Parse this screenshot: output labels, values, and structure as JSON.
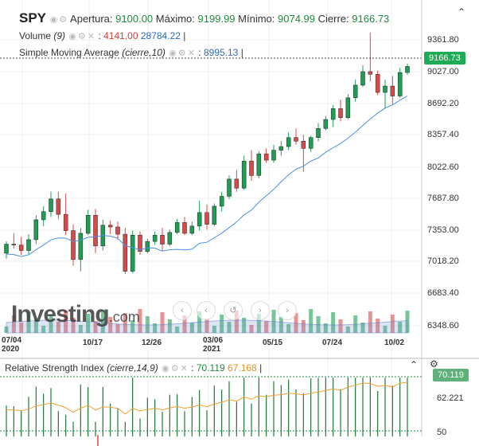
{
  "header": {
    "symbol": "SPY",
    "open_label": "Apertura:",
    "open_value": "9100.00",
    "high_label": "Máximo:",
    "high_value": "9199.99",
    "low_label": "Mínimo:",
    "low_value": "9074.99",
    "close_label": "Cierre:",
    "close_value": "9166.73",
    "volume_label": "Volume",
    "volume_param": "(9)",
    "volume_v1": "4141.00",
    "volume_v2": "28784.22",
    "sma_label": "Simple Moving Average",
    "sma_param": "(cierre,10)",
    "sma_value": "8995.13",
    "colon": ":",
    "sep": "|"
  },
  "price_axis": {
    "ticks": [
      "9361.80",
      "9027.00",
      "8692.20",
      "8357.40",
      "8022.60",
      "7687.80",
      "7353.00",
      "7018.20",
      "6683.40",
      "6348.60"
    ],
    "current": "9166.73"
  },
  "date_axis": {
    "labels": [
      "07/04",
      "10/17",
      "12/26",
      "03/06",
      "05/15",
      "07/24",
      "10/02"
    ],
    "years": [
      "2020",
      "2021"
    ]
  },
  "rsi": {
    "label": "Relative Strength Index",
    "param": "(cierre,14,9)",
    "value1": "70.119",
    "value2": "67.168",
    "axis": [
      "62.221",
      "50"
    ],
    "current": "70.119"
  },
  "watermark": {
    "brand": "Investing",
    "suffix": ".com"
  },
  "colors": {
    "up": "#1f9d55",
    "down": "#d84a4a",
    "sma": "#4a90e2",
    "rsi": "#1f7a3a",
    "rsi_signal": "#f0a030",
    "badge": "#1faa55",
    "rsi_badge": "#5fb07a"
  },
  "chart_data": {
    "type": "candlestick",
    "ylim": [
      6200,
      9550
    ],
    "candles": [
      [
        7100,
        7230,
        7040,
        7200
      ],
      [
        7200,
        7320,
        7150,
        7190
      ],
      [
        7190,
        7280,
        7080,
        7130
      ],
      [
        7130,
        7310,
        7090,
        7250
      ],
      [
        7250,
        7520,
        7200,
        7470
      ],
      [
        7470,
        7620,
        7400,
        7560
      ],
      [
        7560,
        7780,
        7500,
        7700
      ],
      [
        7700,
        7780,
        7480,
        7530
      ],
      [
        7530,
        7760,
        7300,
        7350
      ],
      [
        7350,
        7420,
        6960,
        7030
      ],
      [
        7030,
        7380,
        6900,
        7320
      ],
      [
        7320,
        7580,
        7300,
        7520
      ],
      [
        7520,
        7590,
        7100,
        7180
      ],
      [
        7180,
        7470,
        7130,
        7410
      ],
      [
        7410,
        7460,
        7310,
        7390
      ],
      [
        7390,
        7450,
        7250,
        7310
      ],
      [
        7310,
        7380,
        6870,
        6900
      ],
      [
        6900,
        7350,
        6880,
        7300
      ],
      [
        7300,
        7340,
        7080,
        7120
      ],
      [
        7120,
        7260,
        7100,
        7230
      ],
      [
        7230,
        7340,
        7190,
        7300
      ],
      [
        7300,
        7380,
        7120,
        7200
      ],
      [
        7200,
        7360,
        7180,
        7330
      ],
      [
        7330,
        7480,
        7310,
        7440
      ],
      [
        7440,
        7500,
        7300,
        7320
      ],
      [
        7320,
        7450,
        7300,
        7400
      ],
      [
        7400,
        7680,
        7350,
        7550
      ],
      [
        7550,
        7640,
        7360,
        7420
      ],
      [
        7420,
        7650,
        7400,
        7620
      ],
      [
        7620,
        7780,
        7560,
        7730
      ],
      [
        7730,
        7960,
        7700,
        7920
      ],
      [
        7920,
        8020,
        7780,
        7820
      ],
      [
        7820,
        8180,
        7800,
        8120
      ],
      [
        8120,
        8240,
        7900,
        7960
      ],
      [
        7960,
        8230,
        7930,
        8200
      ],
      [
        8200,
        8260,
        8100,
        8130
      ],
      [
        8130,
        8300,
        8100,
        8240
      ],
      [
        8240,
        8340,
        8180,
        8280
      ],
      [
        8280,
        8440,
        8240,
        8380
      ],
      [
        8380,
        8480,
        8300,
        8340
      ],
      [
        8340,
        8410,
        8000,
        8260
      ],
      [
        8260,
        8400,
        8220,
        8380
      ],
      [
        8380,
        8540,
        8340,
        8480
      ],
      [
        8480,
        8620,
        8460,
        8580
      ],
      [
        8580,
        8740,
        8500,
        8700
      ],
      [
        8700,
        8800,
        8560,
        8600
      ],
      [
        8600,
        8860,
        8580,
        8820
      ],
      [
        8820,
        9020,
        8780,
        8960
      ],
      [
        8960,
        9180,
        8940,
        9110
      ],
      [
        9110,
        9540,
        9000,
        9080
      ],
      [
        9080,
        9120,
        8850,
        8880
      ],
      [
        8880,
        9020,
        8700,
        8950
      ],
      [
        8950,
        9060,
        8750,
        8840
      ],
      [
        8840,
        9150,
        8820,
        9100
      ],
      [
        9100,
        9200,
        9075,
        9167
      ]
    ],
    "sma_reference": "Simple Moving Average (cierre,10)",
    "rsi_levels": [
      30,
      70
    ]
  }
}
